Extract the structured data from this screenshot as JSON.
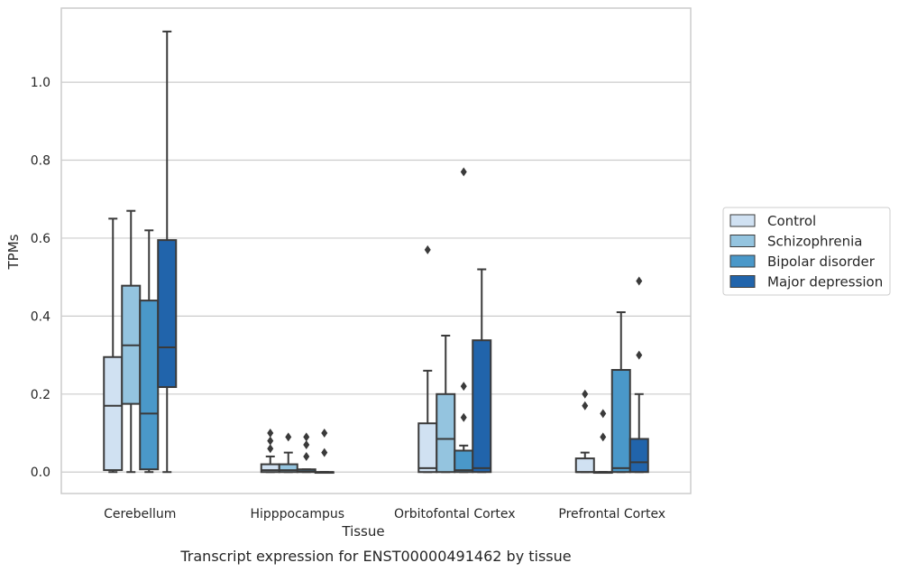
{
  "chart_data": {
    "type": "box",
    "title": "",
    "caption": "Transcript expression for ENST00000491462 by tissue",
    "xlabel": "Tissue",
    "ylabel": "TPMs",
    "ylim": [
      -0.055,
      1.19
    ],
    "yticks": [
      0.0,
      0.2,
      0.4,
      0.6,
      0.8,
      1.0
    ],
    "ytick_labels": [
      "0.0",
      "0.2",
      "0.4",
      "0.6",
      "0.8",
      "1.0"
    ],
    "grid": "horizontal",
    "legend_position": "right",
    "categories": [
      "Cerebellum",
      "Hipppocampus",
      "Orbitofontal Cortex",
      "Prefrontal Cortex"
    ],
    "series": [
      {
        "name": "Control",
        "color": "#d0e1f2",
        "boxes": [
          {
            "whislo": 0.0,
            "q1": 0.005,
            "med": 0.17,
            "q3": 0.295,
            "whishi": 0.65,
            "fliers": []
          },
          {
            "whislo": 0.0,
            "q1": 0.0,
            "med": 0.005,
            "q3": 0.02,
            "whishi": 0.04,
            "fliers": [
              0.06,
              0.08,
              0.1
            ]
          },
          {
            "whislo": 0.0,
            "q1": 0.0,
            "med": 0.01,
            "q3": 0.125,
            "whishi": 0.26,
            "fliers": [
              0.57
            ]
          },
          {
            "whislo": 0.0,
            "q1": 0.0,
            "med": 0.0,
            "q3": 0.035,
            "whishi": 0.05,
            "fliers": [
              0.17,
              0.2
            ]
          }
        ]
      },
      {
        "name": "Schizophrenia",
        "color": "#94c4df",
        "boxes": [
          {
            "whislo": 0.0,
            "q1": 0.175,
            "med": 0.325,
            "q3": 0.478,
            "whishi": 0.67,
            "fliers": []
          },
          {
            "whislo": 0.0,
            "q1": 0.0,
            "med": 0.005,
            "q3": 0.02,
            "whishi": 0.05,
            "fliers": [
              0.09
            ]
          },
          {
            "whislo": 0.0,
            "q1": 0.0,
            "med": 0.085,
            "q3": 0.2,
            "whishi": 0.35,
            "fliers": []
          },
          {
            "whislo": 0.0,
            "q1": 0.0,
            "med": 0.0,
            "q3": 0.0,
            "whishi": 0.0,
            "fliers": [
              0.09,
              0.15
            ]
          }
        ]
      },
      {
        "name": "Bipolar disorder",
        "color": "#4a98c9",
        "boxes": [
          {
            "whislo": 0.0,
            "q1": 0.007,
            "med": 0.15,
            "q3": 0.44,
            "whishi": 0.62,
            "fliers": []
          },
          {
            "whislo": 0.0,
            "q1": 0.0,
            "med": 0.002,
            "q3": 0.007,
            "whishi": 0.007,
            "fliers": [
              0.04,
              0.07,
              0.09
            ]
          },
          {
            "whislo": 0.0,
            "q1": 0.0,
            "med": 0.005,
            "q3": 0.055,
            "whishi": 0.068,
            "fliers": [
              0.14,
              0.22,
              0.77
            ]
          },
          {
            "whislo": 0.0,
            "q1": 0.0,
            "med": 0.01,
            "q3": 0.262,
            "whishi": 0.41,
            "fliers": []
          }
        ]
      },
      {
        "name": "Major depression",
        "color": "#2164ab",
        "boxes": [
          {
            "whislo": 0.0,
            "q1": 0.218,
            "med": 0.32,
            "q3": 0.595,
            "whishi": 1.13,
            "fliers": []
          },
          {
            "whislo": 0.0,
            "q1": 0.0,
            "med": 0.0,
            "q3": 0.0,
            "whishi": 0.0,
            "fliers": [
              0.05,
              0.1
            ]
          },
          {
            "whislo": 0.0,
            "q1": 0.0,
            "med": 0.01,
            "q3": 0.338,
            "whishi": 0.52,
            "fliers": []
          },
          {
            "whislo": 0.0,
            "q1": 0.0,
            "med": 0.025,
            "q3": 0.085,
            "whishi": 0.2,
            "fliers": [
              0.3,
              0.49
            ]
          }
        ]
      }
    ]
  },
  "style": {
    "line_color": "#3a3a3a",
    "grid_color": "#cccccc",
    "frame_color": "#cccccc",
    "text_color": "#262626"
  }
}
